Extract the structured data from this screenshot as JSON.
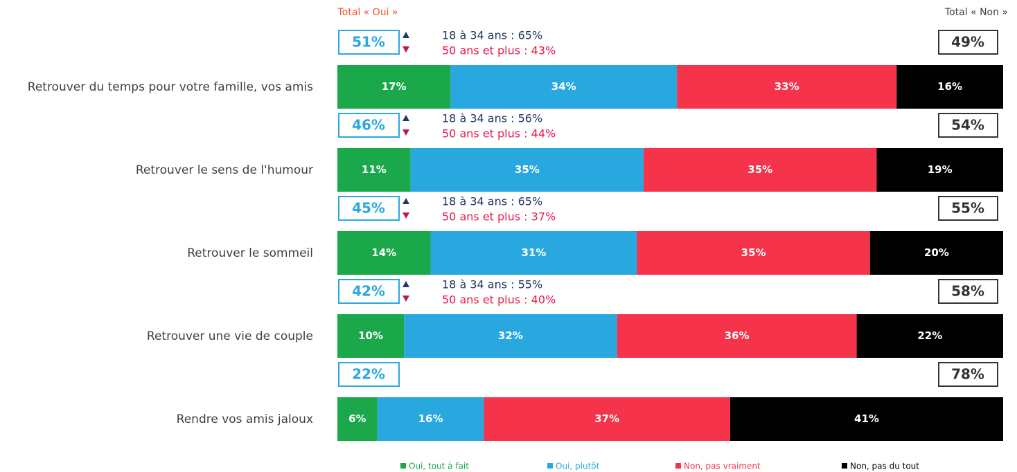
{
  "chart_data": {
    "type": "stacked-bar-horizontal",
    "header_oui": "Total « Oui »",
    "header_non": "Total « Non »",
    "categories": [
      "Retrouver du temps pour votre famille, vos amis",
      "Retrouver le sens de l'humour",
      "Retrouver le sommeil",
      "Retrouver une vie de couple",
      "Rendre vos amis jaloux"
    ],
    "xlim": [
      0,
      100
    ],
    "series": [
      {
        "name": "Oui, tout à fait",
        "color": "#1aa84b",
        "values": [
          17,
          11,
          14,
          10,
          6
        ],
        "value_labels": [
          "17%",
          "11%",
          "14%",
          "10%",
          "6%"
        ]
      },
      {
        "name": "Oui, plutôt",
        "color": "#29a8e0",
        "values": [
          34,
          35,
          31,
          32,
          16
        ],
        "value_labels": [
          "34%",
          "35%",
          "31%",
          "32%",
          "16%"
        ]
      },
      {
        "name": "Non, pas vraiment",
        "color": "#f5334a",
        "values": [
          33,
          35,
          35,
          36,
          37
        ],
        "value_labels": [
          "33%",
          "35%",
          "35%",
          "36%",
          "37%"
        ]
      },
      {
        "name": "Non, pas du tout",
        "color": "#000000",
        "values": [
          16,
          19,
          20,
          22,
          41
        ],
        "value_labels": [
          "16%",
          "19%",
          "20%",
          "22%",
          "41%"
        ]
      }
    ],
    "total_oui": {
      "color": "#29a8e0",
      "values": [
        51,
        46,
        45,
        42,
        22
      ],
      "value_labels": [
        "51%",
        "46%",
        "45%",
        "42%",
        "22%"
      ]
    },
    "total_non": {
      "color": "#333333",
      "values": [
        49,
        54,
        55,
        58,
        78
      ],
      "value_labels": [
        "49%",
        "54%",
        "55%",
        "58%",
        "78%"
      ]
    },
    "subgroups": [
      {
        "young": "18 à 34 ans : 65%",
        "senior": "50 ans et plus : 43%"
      },
      {
        "young": "18 à 34 ans : 56%",
        "senior": "50 ans et plus : 44%"
      },
      {
        "young": "18 à 34 ans : 65%",
        "senior": "50 ans et plus : 37%"
      },
      {
        "young": "18 à 34 ans : 55%",
        "senior": "50 ans et plus : 40%"
      }
    ]
  }
}
